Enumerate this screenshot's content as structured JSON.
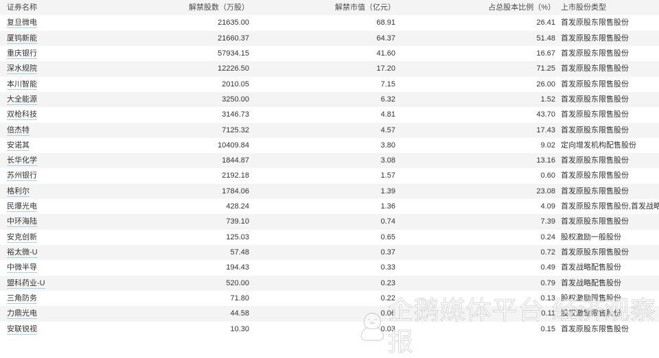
{
  "table": {
    "columns": [
      {
        "label": "证券名称",
        "align": "left"
      },
      {
        "label": "解禁股数（万股）",
        "align": "right"
      },
      {
        "label": "解禁市值（亿元）",
        "align": "right"
      },
      {
        "label": "占总股本比例（%）",
        "align": "right"
      },
      {
        "label": "上市股份类型",
        "align": "left"
      }
    ],
    "rows": [
      {
        "name": "复旦微电",
        "shares": "21635.00",
        "value": "68.91",
        "pct": "26.41",
        "type": "首发原股东限售股份"
      },
      {
        "name": "厦钨新能",
        "shares": "21660.37",
        "value": "64.37",
        "pct": "51.48",
        "type": "首发原股东限售股份"
      },
      {
        "name": "重庆银行",
        "shares": "57934.15",
        "value": "41.60",
        "pct": "16.67",
        "type": "首发原股东限售股份"
      },
      {
        "name": "深水规院",
        "shares": "12226.50",
        "value": "17.20",
        "pct": "71.25",
        "type": "首发原股东限售股份"
      },
      {
        "name": "本川智能",
        "shares": "2010.05",
        "value": "7.15",
        "pct": "26.00",
        "type": "首发原股东限售股份"
      },
      {
        "name": "大全能源",
        "shares": "3250.00",
        "value": "6.32",
        "pct": "1.52",
        "type": "首发原股东限售股份"
      },
      {
        "name": "双枪科技",
        "shares": "3146.73",
        "value": "4.81",
        "pct": "43.70",
        "type": "首发原股东限售股份"
      },
      {
        "name": "倍杰特",
        "shares": "7125.32",
        "value": "4.57",
        "pct": "17.43",
        "type": "首发原股东限售股份"
      },
      {
        "name": "安诺其",
        "shares": "10409.84",
        "value": "3.80",
        "pct": "9.02",
        "type": "定向增发机构配售股份"
      },
      {
        "name": "长华化学",
        "shares": "1844.87",
        "value": "3.08",
        "pct": "13.16",
        "type": "首发原股东限售股份"
      },
      {
        "name": "苏州银行",
        "shares": "2192.18",
        "value": "1.57",
        "pct": "0.60",
        "type": "首发原股东限售股份"
      },
      {
        "name": "格利尔",
        "shares": "1784.06",
        "value": "1.39",
        "pct": "23.08",
        "type": "首发原股东限售股份"
      },
      {
        "name": "民爆光电",
        "shares": "428.24",
        "value": "1.36",
        "pct": "4.09",
        "type": "首发原股东限售股份,首发战略配售股份"
      },
      {
        "name": "中环海陆",
        "shares": "739.10",
        "value": "0.74",
        "pct": "7.39",
        "type": "首发原股东限售股份"
      },
      {
        "name": "安克创新",
        "shares": "125.03",
        "value": "0.65",
        "pct": "0.24",
        "type": "股权激励一般股份"
      },
      {
        "name": "裕太微-U",
        "shares": "57.48",
        "value": "0.37",
        "pct": "0.72",
        "type": "首发原股东限售股份"
      },
      {
        "name": "中微半导",
        "shares": "194.43",
        "value": "0.33",
        "pct": "0.49",
        "type": "首发战略配售股份"
      },
      {
        "name": "盟科药业-U",
        "shares": "520.00",
        "value": "0.23",
        "pct": "0.79",
        "type": "首发战略配售股份"
      },
      {
        "name": "三角防务",
        "shares": "71.80",
        "value": "0.22",
        "pct": "0.13",
        "type": "股权激励限售股份"
      },
      {
        "name": "力鼎光电",
        "shares": "44.58",
        "value": "0.06",
        "pct": "0.11",
        "type": "股权激励限售股份"
      },
      {
        "name": "安联锐视",
        "shares": "10.30",
        "value": "0.03",
        "pct": "0.15",
        "type": "首发原股东限售股份"
      }
    ]
  },
  "watermark": {
    "icon": "penguin-outline-icon",
    "text": "企鹅媒体平台 经济观察报"
  },
  "colors": {
    "stripe": "#f4f4f5",
    "text": "#333333",
    "link_underline": "#a9cfe2"
  }
}
